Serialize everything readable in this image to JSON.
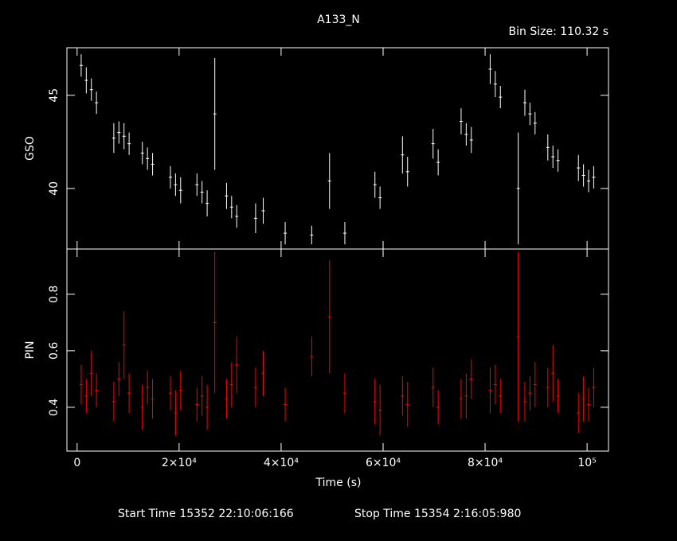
{
  "chart_data": [
    {
      "type": "errorbar",
      "title": "A133_N",
      "subtitle": "Bin Size: 110.32 s",
      "ylabel": "GSO",
      "color": "#ffffff",
      "x": [
        800,
        1800,
        2800,
        3800,
        7200,
        8200,
        9200,
        10200,
        12800,
        13800,
        14800,
        18300,
        19300,
        20300,
        23500,
        24500,
        25500,
        27000,
        29300,
        30300,
        31300,
        35000,
        36500,
        40800,
        46000,
        49500,
        52500,
        58400,
        59400,
        63800,
        64800,
        69800,
        70800,
        75300,
        76300,
        77300,
        81000,
        82000,
        83000,
        86500,
        87800,
        88800,
        89800,
        92300,
        93300,
        94300,
        98300,
        99300,
        100300,
        101300
      ],
      "values": [
        46.6,
        45.8,
        45.3,
        44.6,
        42.7,
        43.0,
        42.8,
        42.4,
        41.9,
        41.6,
        41.3,
        40.6,
        40.2,
        39.9,
        40.2,
        39.8,
        39.2,
        44.0,
        39.6,
        39.0,
        38.5,
        38.4,
        38.8,
        37.6,
        37.5,
        40.4,
        37.6,
        40.2,
        39.5,
        41.8,
        40.9,
        42.4,
        41.4,
        43.6,
        42.9,
        42.6,
        46.4,
        45.6,
        44.9,
        40.0,
        44.6,
        44.0,
        43.5,
        42.2,
        41.7,
        41.5,
        41.1,
        40.7,
        40.4,
        40.6
      ],
      "errors": [
        0.6,
        0.7,
        0.6,
        0.6,
        0.8,
        0.6,
        0.7,
        0.6,
        0.6,
        0.6,
        0.6,
        0.6,
        0.6,
        0.7,
        0.6,
        0.6,
        0.7,
        3.0,
        0.7,
        0.6,
        0.6,
        0.8,
        0.7,
        0.6,
        0.5,
        1.5,
        0.6,
        0.7,
        0.6,
        1.0,
        0.8,
        0.8,
        0.7,
        0.7,
        0.6,
        0.7,
        0.8,
        0.7,
        0.6,
        3.0,
        0.7,
        0.6,
        0.6,
        0.7,
        0.6,
        0.6,
        0.7,
        0.6,
        0.6,
        0.6
      ],
      "xlim": [
        -2000,
        104200
      ],
      "ylim": [
        36.75,
        47.55
      ],
      "xticks": [
        0,
        20000,
        40000,
        60000,
        80000,
        100000
      ],
      "yticks": [
        40,
        45
      ]
    },
    {
      "type": "errorbar",
      "ylabel": "PIN",
      "xlabel": "Time (s)",
      "color": "#ff0000",
      "x": [
        800,
        1800,
        2800,
        3800,
        7200,
        8200,
        9200,
        10200,
        12800,
        13800,
        14800,
        18300,
        19300,
        20300,
        23500,
        24500,
        25500,
        27000,
        29300,
        30300,
        31300,
        35000,
        36500,
        40800,
        46000,
        49500,
        52500,
        58400,
        59400,
        63800,
        64800,
        69800,
        70800,
        75300,
        76300,
        77300,
        81000,
        82000,
        83000,
        86500,
        87800,
        88800,
        89800,
        92300,
        93300,
        94300,
        98300,
        99300,
        100300,
        101300
      ],
      "values": [
        0.48,
        0.44,
        0.52,
        0.46,
        0.42,
        0.5,
        0.62,
        0.45,
        0.4,
        0.47,
        0.43,
        0.45,
        0.38,
        0.46,
        0.41,
        0.44,
        0.4,
        0.7,
        0.43,
        0.48,
        0.55,
        0.47,
        0.52,
        0.41,
        0.58,
        0.72,
        0.45,
        0.42,
        0.39,
        0.44,
        0.41,
        0.47,
        0.4,
        0.43,
        0.44,
        0.5,
        0.46,
        0.48,
        0.44,
        0.65,
        0.42,
        0.45,
        0.48,
        0.47,
        0.52,
        0.44,
        0.38,
        0.43,
        0.41,
        0.47
      ],
      "errors": [
        0.07,
        0.06,
        0.08,
        0.06,
        0.07,
        0.06,
        0.12,
        0.07,
        0.08,
        0.06,
        0.07,
        0.06,
        0.08,
        0.07,
        0.06,
        0.07,
        0.08,
        0.25,
        0.07,
        0.08,
        0.1,
        0.07,
        0.08,
        0.06,
        0.07,
        0.2,
        0.07,
        0.08,
        0.09,
        0.07,
        0.08,
        0.07,
        0.06,
        0.07,
        0.08,
        0.07,
        0.08,
        0.07,
        0.06,
        0.3,
        0.07,
        0.06,
        0.08,
        0.07,
        0.1,
        0.06,
        0.07,
        0.08,
        0.06,
        0.07
      ],
      "xlim": [
        -2000,
        104200
      ],
      "ylim": [
        0.245,
        0.96
      ],
      "xticks": [
        {
          "value": 0,
          "label": "0"
        },
        {
          "value": 20000,
          "label": "2×10⁴"
        },
        {
          "value": 40000,
          "label": "4×10⁴"
        },
        {
          "value": 60000,
          "label": "6×10⁴"
        },
        {
          "value": 80000,
          "label": "8×10⁴"
        },
        {
          "value": 100000,
          "label": "10⁵"
        }
      ],
      "yticks": [
        0.4,
        0.6,
        0.8
      ]
    }
  ],
  "footer": {
    "start": "Start Time 15352 22:10:06:166",
    "stop": "Stop Time 15354  2:16:05:980"
  }
}
